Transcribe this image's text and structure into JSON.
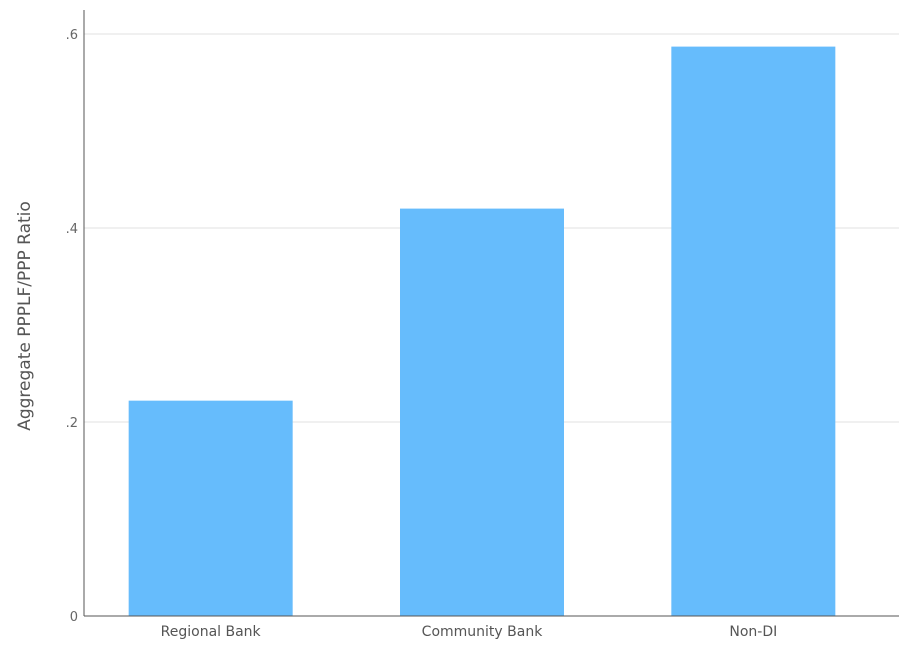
{
  "chart_data": {
    "type": "bar",
    "categories": [
      "Regional Bank",
      "Community Bank",
      "Non-DI"
    ],
    "values": [
      0.222,
      0.42,
      0.587
    ],
    "title": "",
    "xlabel": "",
    "ylabel": "Aggregate PPPLF/PPP Ratio",
    "ylim": [
      0,
      0.6
    ],
    "yticks": [
      0,
      0.2,
      0.4,
      0.6
    ],
    "ytick_labels": [
      "0",
      ".2",
      ".4",
      ".6"
    ],
    "grid": true,
    "bar_color": "#66bcfc"
  }
}
